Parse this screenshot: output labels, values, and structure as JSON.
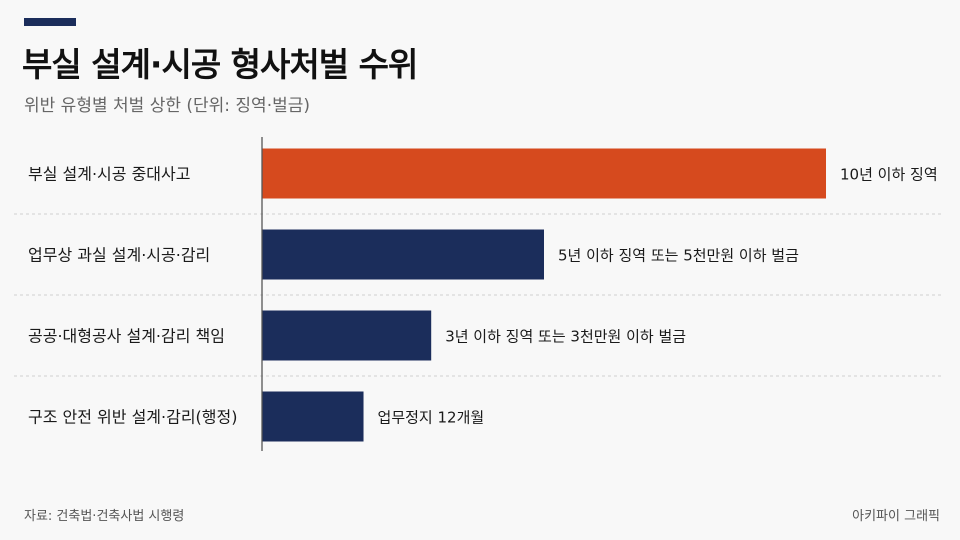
{
  "header": {
    "title": "부실 설계·시공 형사처벌 수위",
    "subtitle": "위반 유형별 처벌 상한 (단위: 징역·벌금)"
  },
  "footer": {
    "source": "자료: 건축법·건축사법 시행령",
    "credit": "아키파이 그래픽"
  },
  "colors": {
    "highlight": "#d64a1e",
    "default": "#1b2d5b",
    "accent": "#1b2d5b"
  },
  "chart_data": {
    "type": "bar",
    "orientation": "horizontal",
    "categories": [
      "부실 설계·시공 중대사고",
      "업무상 과실 설계·시공·감리",
      "공공·대형공사 설계·감리 책임",
      "구조 안전 위반 설계·감리(행정)"
    ],
    "values": [
      100,
      50,
      30,
      18
    ],
    "value_labels": [
      "10년 이하 징역",
      "5년 이하 징역 또는 5천만원 이하 벌금",
      "3년 이하 징역 또는 3천만원 이하 벌금",
      "업무정지 12개월"
    ],
    "highlight_index": 0,
    "xlim": [
      0,
      100
    ],
    "grid": false,
    "legend": "none"
  }
}
